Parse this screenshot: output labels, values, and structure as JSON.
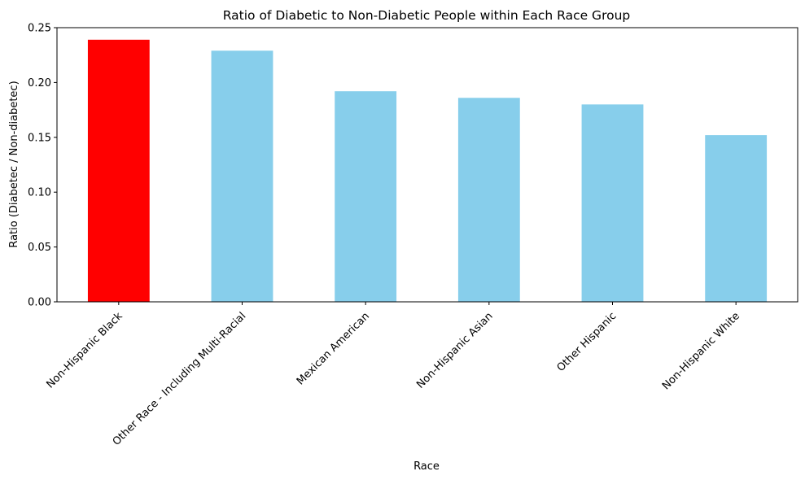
{
  "chart_data": {
    "type": "bar",
    "title": "Ratio of Diabetic to Non-Diabetic People within Each Race Group",
    "xlabel": "Race",
    "ylabel": "Ratio (Diabetec / Non-diabetec)",
    "categories": [
      "Non-Hispanic Black",
      "Other Race - Including Multi-Racial",
      "Mexican American",
      "Non-Hispanic Asian",
      "Other Hispanic",
      "Non-Hispanic White"
    ],
    "values": [
      0.239,
      0.229,
      0.192,
      0.186,
      0.18,
      0.152
    ],
    "bar_colors": [
      "#ff0000",
      "#87ceeb",
      "#87ceeb",
      "#87ceeb",
      "#87ceeb",
      "#87ceeb"
    ],
    "ylim": [
      0,
      0.25
    ],
    "yticks": [
      0.0,
      0.05,
      0.1,
      0.15,
      0.2,
      0.25
    ],
    "ytick_labels": [
      "0.00",
      "0.05",
      "0.10",
      "0.15",
      "0.20",
      "0.25"
    ],
    "grid": false,
    "legend": false
  }
}
